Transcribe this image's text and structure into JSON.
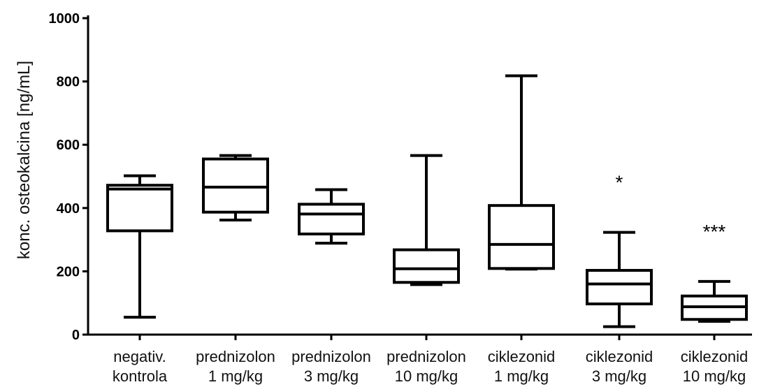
{
  "chart_data": {
    "type": "box",
    "ylabel": "konc. osteokalcina [ng/mL]",
    "ylim": [
      0,
      1000
    ],
    "yticks": [
      0,
      200,
      400,
      600,
      800,
      1000
    ],
    "grid": false,
    "categories": [
      {
        "line1": "negativ.",
        "line2": "kontrola"
      },
      {
        "line1": "prednizolon",
        "line2": "1 mg/kg"
      },
      {
        "line1": "prednizolon",
        "line2": "3 mg/kg"
      },
      {
        "line1": "prednizolon",
        "line2": "10 mg/kg"
      },
      {
        "line1": "ciklezonid",
        "line2": "1 mg/kg"
      },
      {
        "line1": "ciklezonid",
        "line2": "3 mg/kg"
      },
      {
        "line1": "ciklezonid",
        "line2": "10 mg/kg"
      }
    ],
    "boxes": [
      {
        "min": 55,
        "q1": 328,
        "median": 460,
        "q3": 472,
        "max": 502,
        "sig": ""
      },
      {
        "min": 362,
        "q1": 387,
        "median": 466,
        "q3": 555,
        "max": 566,
        "sig": ""
      },
      {
        "min": 289,
        "q1": 318,
        "median": 381,
        "q3": 412,
        "max": 458,
        "sig": ""
      },
      {
        "min": 158,
        "q1": 165,
        "median": 208,
        "q3": 268,
        "max": 566,
        "sig": ""
      },
      {
        "min": 207,
        "q1": 209,
        "median": 285,
        "q3": 408,
        "max": 818,
        "sig": ""
      },
      {
        "min": 25,
        "q1": 97,
        "median": 160,
        "q3": 203,
        "max": 323,
        "sig": "*"
      },
      {
        "min": 42,
        "q1": 48,
        "median": 88,
        "q3": 122,
        "max": 168,
        "sig": "***"
      }
    ]
  }
}
